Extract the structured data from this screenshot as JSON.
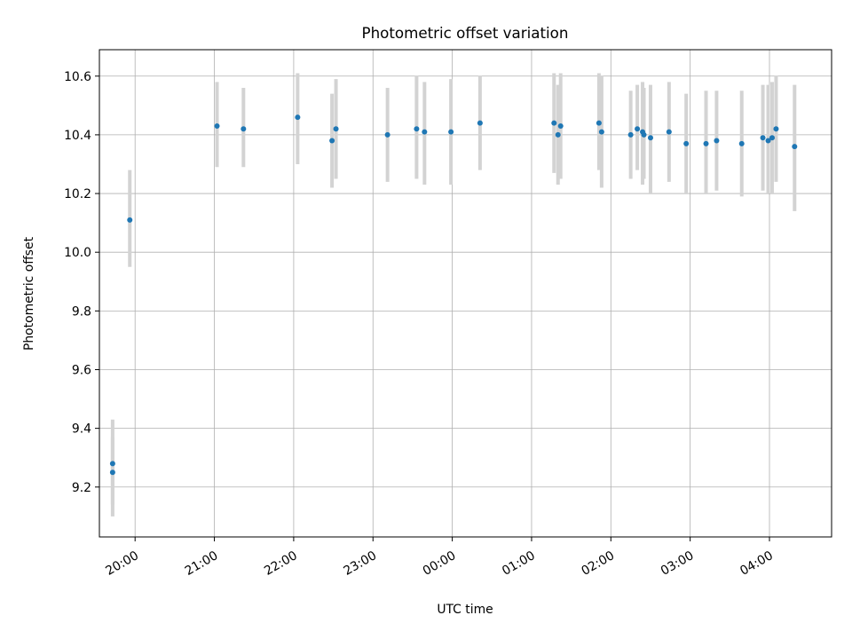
{
  "chart_data": {
    "type": "scatter",
    "title": "Photometric offset variation",
    "xlabel": "UTC time",
    "ylabel": "Photometric offset",
    "x_axis": "time",
    "xlim": [
      "19:33",
      "04:47"
    ],
    "ylim": [
      9.03,
      10.69
    ],
    "xticks": [
      "20:00",
      "21:00",
      "22:00",
      "23:00",
      "00:00",
      "01:00",
      "02:00",
      "03:00",
      "04:00"
    ],
    "yticks": [
      9.2,
      9.4,
      9.6,
      9.8,
      10.0,
      10.2,
      10.4,
      10.6
    ],
    "ytick_labels": [
      "9.2",
      "9.4",
      "9.6",
      "9.8",
      "10.0",
      "10.2",
      "10.4",
      "10.6"
    ],
    "grid": true,
    "colors": {
      "points": "#1f77b4",
      "errorbars": "#d3d3d3"
    },
    "points": [
      {
        "x": "19:43",
        "y": 9.25,
        "lo": 9.14,
        "hi": 9.37
      },
      {
        "x": "19:43",
        "y": 9.28,
        "lo": 9.1,
        "hi": 9.43
      },
      {
        "x": "19:56",
        "y": 10.11,
        "lo": 9.95,
        "hi": 10.28
      },
      {
        "x": "21:02",
        "y": 10.43,
        "lo": 10.29,
        "hi": 10.58
      },
      {
        "x": "21:22",
        "y": 10.42,
        "lo": 10.29,
        "hi": 10.56
      },
      {
        "x": "22:03",
        "y": 10.46,
        "lo": 10.3,
        "hi": 10.61
      },
      {
        "x": "22:29",
        "y": 10.38,
        "lo": 10.22,
        "hi": 10.54
      },
      {
        "x": "22:32",
        "y": 10.42,
        "lo": 10.25,
        "hi": 10.59
      },
      {
        "x": "23:11",
        "y": 10.4,
        "lo": 10.24,
        "hi": 10.56
      },
      {
        "x": "23:33",
        "y": 10.42,
        "lo": 10.25,
        "hi": 10.6
      },
      {
        "x": "23:39",
        "y": 10.41,
        "lo": 10.23,
        "hi": 10.58
      },
      {
        "x": "23:59",
        "y": 10.41,
        "lo": 10.23,
        "hi": 10.59
      },
      {
        "x": "00:21",
        "y": 10.44,
        "lo": 10.28,
        "hi": 10.6
      },
      {
        "x": "01:17",
        "y": 10.44,
        "lo": 10.27,
        "hi": 10.61
      },
      {
        "x": "01:20",
        "y": 10.4,
        "lo": 10.23,
        "hi": 10.57
      },
      {
        "x": "01:22",
        "y": 10.43,
        "lo": 10.25,
        "hi": 10.61
      },
      {
        "x": "01:51",
        "y": 10.44,
        "lo": 10.28,
        "hi": 10.61
      },
      {
        "x": "01:53",
        "y": 10.41,
        "lo": 10.22,
        "hi": 10.6
      },
      {
        "x": "02:15",
        "y": 10.4,
        "lo": 10.25,
        "hi": 10.55
      },
      {
        "x": "02:20",
        "y": 10.42,
        "lo": 10.28,
        "hi": 10.57
      },
      {
        "x": "02:24",
        "y": 10.41,
        "lo": 10.23,
        "hi": 10.58
      },
      {
        "x": "02:25",
        "y": 10.4,
        "lo": 10.25,
        "hi": 10.56
      },
      {
        "x": "02:30",
        "y": 10.39,
        "lo": 10.2,
        "hi": 10.57
      },
      {
        "x": "02:44",
        "y": 10.41,
        "lo": 10.24,
        "hi": 10.58
      },
      {
        "x": "02:57",
        "y": 10.37,
        "lo": 10.2,
        "hi": 10.54
      },
      {
        "x": "03:12",
        "y": 10.37,
        "lo": 10.2,
        "hi": 10.55
      },
      {
        "x": "03:20",
        "y": 10.38,
        "lo": 10.21,
        "hi": 10.55
      },
      {
        "x": "03:39",
        "y": 10.37,
        "lo": 10.19,
        "hi": 10.55
      },
      {
        "x": "03:55",
        "y": 10.39,
        "lo": 10.21,
        "hi": 10.57
      },
      {
        "x": "03:59",
        "y": 10.38,
        "lo": 10.2,
        "hi": 10.57
      },
      {
        "x": "04:02",
        "y": 10.39,
        "lo": 10.2,
        "hi": 10.58
      },
      {
        "x": "04:05",
        "y": 10.42,
        "lo": 10.24,
        "hi": 10.6
      },
      {
        "x": "04:19",
        "y": 10.36,
        "lo": 10.14,
        "hi": 10.57
      }
    ]
  }
}
